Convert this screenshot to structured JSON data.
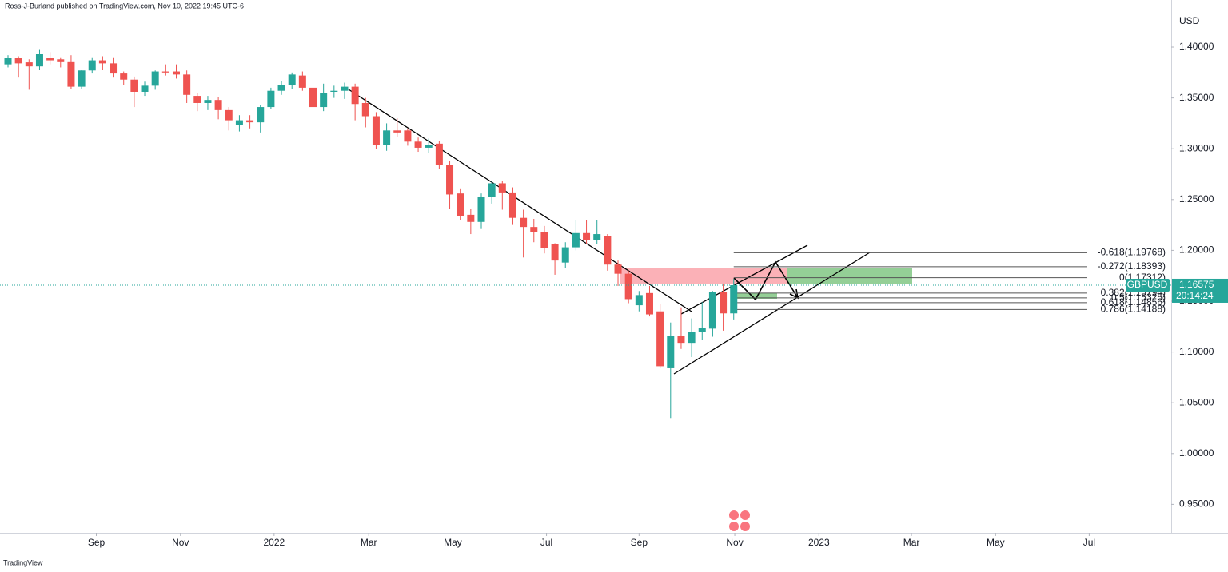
{
  "header": "Ross-J-Burland published on TradingView.com, Nov 10, 2022 19:45 UTC-6",
  "footer": "TradingView",
  "chart_data": {
    "type": "candlestick",
    "y_unit": "USD",
    "up_color": "#26a69a",
    "down_color": "#ef5350",
    "open": [
      1.383,
      1.389,
      1.385,
      1.381,
      1.389,
      1.388,
      1.386,
      1.361,
      1.377,
      1.387,
      1.384,
      1.374,
      1.368,
      1.356,
      1.362,
      1.376,
      1.376,
      1.373,
      1.352,
      1.345,
      1.348,
      1.338,
      1.323,
      1.328,
      1.326,
      1.341,
      1.357,
      1.363,
      1.372,
      1.36,
      1.341,
      1.356,
      1.357,
      1.361,
      1.345,
      1.332,
      1.304,
      1.318,
      1.318,
      1.307,
      1.301,
      1.305,
      1.284,
      1.256,
      1.235,
      1.228,
      1.253,
      1.266,
      1.257,
      1.232,
      1.223,
      1.218,
      1.206,
      1.188,
      1.203,
      1.217,
      1.21,
      1.214,
      1.186,
      1.177,
      1.146,
      1.158,
      1.14,
      1.084,
      1.116,
      1.109,
      1.12,
      1.123,
      1.159,
      1.138
    ],
    "high": [
      1.392,
      1.391,
      1.388,
      1.398,
      1.395,
      1.39,
      1.392,
      1.378,
      1.39,
      1.391,
      1.39,
      1.376,
      1.371,
      1.366,
      1.377,
      1.383,
      1.383,
      1.377,
      1.355,
      1.352,
      1.351,
      1.341,
      1.333,
      1.333,
      1.343,
      1.36,
      1.367,
      1.375,
      1.376,
      1.362,
      1.364,
      1.362,
      1.365,
      1.364,
      1.35,
      1.336,
      1.325,
      1.33,
      1.32,
      1.311,
      1.31,
      1.308,
      1.288,
      1.261,
      1.241,
      1.256,
      1.268,
      1.268,
      1.262,
      1.24,
      1.231,
      1.224,
      1.207,
      1.208,
      1.23,
      1.23,
      1.23,
      1.216,
      1.19,
      1.18,
      1.16,
      1.165,
      1.147,
      1.129,
      1.144,
      1.133,
      1.149,
      1.16,
      1.167,
      1.172
    ],
    "low": [
      1.38,
      1.37,
      1.358,
      1.378,
      1.383,
      1.38,
      1.359,
      1.359,
      1.374,
      1.378,
      1.37,
      1.363,
      1.341,
      1.352,
      1.358,
      1.372,
      1.369,
      1.345,
      1.337,
      1.338,
      1.329,
      1.318,
      1.317,
      1.32,
      1.316,
      1.339,
      1.353,
      1.359,
      1.357,
      1.336,
      1.337,
      1.35,
      1.349,
      1.328,
      1.321,
      1.3,
      1.298,
      1.312,
      1.303,
      1.297,
      1.296,
      1.28,
      1.241,
      1.23,
      1.216,
      1.221,
      1.246,
      1.24,
      1.225,
      1.193,
      1.208,
      1.197,
      1.176,
      1.183,
      1.2,
      1.206,
      1.206,
      1.18,
      1.165,
      1.148,
      1.14,
      1.135,
      1.084,
      1.035,
      1.103,
      1.095,
      1.112,
      1.115,
      1.121,
      1.132
    ],
    "close": [
      1.389,
      1.384,
      1.381,
      1.393,
      1.387,
      1.386,
      1.361,
      1.377,
      1.387,
      1.384,
      1.374,
      1.368,
      1.356,
      1.362,
      1.376,
      1.375,
      1.373,
      1.353,
      1.345,
      1.348,
      1.338,
      1.328,
      1.328,
      1.326,
      1.341,
      1.357,
      1.363,
      1.373,
      1.36,
      1.341,
      1.355,
      1.357,
      1.361,
      1.344,
      1.332,
      1.304,
      1.318,
      1.316,
      1.307,
      1.301,
      1.304,
      1.284,
      1.255,
      1.234,
      1.228,
      1.253,
      1.266,
      1.257,
      1.232,
      1.223,
      1.218,
      1.202,
      1.19,
      1.203,
      1.217,
      1.21,
      1.216,
      1.186,
      1.177,
      1.152,
      1.156,
      1.137,
      1.086,
      1.116,
      1.109,
      1.12,
      1.124,
      1.159,
      1.138,
      1.16575
    ],
    "xlim": [
      -0.76,
      110.6
    ],
    "xticks": [
      {
        "value": 8.4,
        "label": "Sep"
      },
      {
        "value": 16.4,
        "label": "Nov"
      },
      {
        "value": 25.3,
        "label": "2022"
      },
      {
        "value": 34.3,
        "label": "Mar"
      },
      {
        "value": 42.3,
        "label": "May"
      },
      {
        "value": 51.2,
        "label": "Jul"
      },
      {
        "value": 60.0,
        "label": "Sep"
      },
      {
        "value": 69.1,
        "label": "Nov"
      },
      {
        "value": 77.1,
        "label": "2023"
      },
      {
        "value": 85.9,
        "label": "Mar"
      },
      {
        "value": 93.9,
        "label": "May"
      },
      {
        "value": 102.8,
        "label": "Jul"
      }
    ],
    "ylim": [
      0.922,
      1.4464
    ],
    "yticks": [
      {
        "value": 0.95,
        "label": "0.95000"
      },
      {
        "value": 1.0,
        "label": "1.00000"
      },
      {
        "value": 1.05,
        "label": "1.05000"
      },
      {
        "value": 1.1,
        "label": "1.10000"
      },
      {
        "value": 1.15,
        "label": "1.15000"
      },
      {
        "value": 1.2,
        "label": "1.20000"
      },
      {
        "value": 1.25,
        "label": "1.25000"
      },
      {
        "value": 1.3,
        "label": "1.30000"
      },
      {
        "value": 1.35,
        "label": "1.35000"
      },
      {
        "value": 1.4,
        "label": "1.40000"
      }
    ],
    "fib_levels": [
      {
        "value": 1.19768,
        "label": "-0.618(1.19768)"
      },
      {
        "value": 1.18393,
        "label": "-0.272(1.18393)"
      },
      {
        "value": 1.17312,
        "label": "0(1.17312)"
      },
      {
        "value": 1.15794,
        "label": "0.382(1.15794)"
      },
      {
        "value": 1.15325,
        "label": "0.5(1.15325)"
      },
      {
        "value": 1.14856,
        "label": "0.618(1.14856)"
      },
      {
        "value": 1.14188,
        "label": "0.786(1.14188)"
      }
    ],
    "last_price": {
      "symbol": "GBPUSD",
      "value": 1.16575,
      "countdown": "20:14:24"
    }
  }
}
